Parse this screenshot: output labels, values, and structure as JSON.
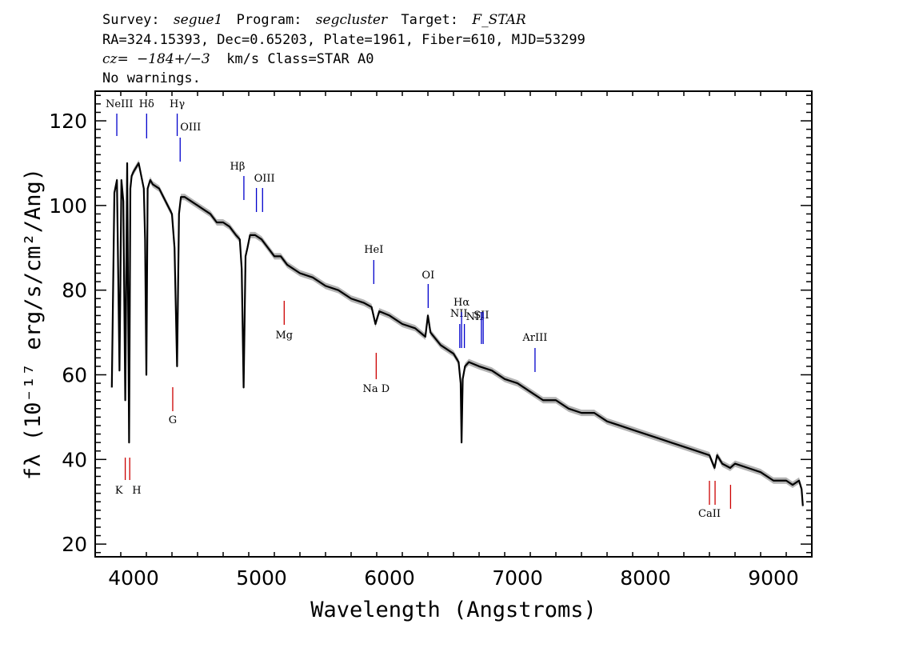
{
  "header": {
    "line1": {
      "survey_key": "Survey:",
      "survey": "segue1",
      "program_key": "Program:",
      "program": "segcluster",
      "target_key": "Target:",
      "target": "F_STAR"
    },
    "line2": "RA=324.15393, Dec=0.65203, Plate=1961, Fiber=610, MJD=53299",
    "line3": {
      "cz_label": "cz=",
      "cz_value": "−184+/−3",
      "cz_rest": " km/s Class=STAR A0"
    },
    "line4": "No warnings."
  },
  "chart_data": {
    "type": "line",
    "xlabel": "Wavelength (Angstroms)",
    "ylabel": "fλ (10⁻¹⁷ erg/s/cm²/Ang)",
    "xlim": [
      3700,
      9300
    ],
    "ylim": [
      17,
      127
    ],
    "x_ticks": [
      4000,
      5000,
      6000,
      7000,
      8000,
      9000
    ],
    "y_ticks": [
      20,
      40,
      60,
      80,
      100,
      120
    ],
    "grid": false,
    "series": [
      {
        "color": "#000000",
        "error_band_color": "#b3b3b3",
        "x": [
          3830,
          3850,
          3870,
          3890,
          3905,
          3920,
          3935,
          3950,
          3965,
          3975,
          3985,
          4000,
          4020,
          4040,
          4060,
          4080,
          4090,
          4100,
          4110,
          4130,
          4150,
          4200,
          4250,
          4300,
          4320,
          4340,
          4355,
          4370,
          4400,
          4450,
          4500,
          4550,
          4600,
          4650,
          4700,
          4750,
          4800,
          4830,
          4845,
          4860,
          4875,
          4890,
          4910,
          4950,
          5000,
          5050,
          5100,
          5150,
          5200,
          5300,
          5400,
          5500,
          5600,
          5700,
          5800,
          5860,
          5890,
          5920,
          6000,
          6100,
          6200,
          6280,
          6300,
          6320,
          6400,
          6500,
          6540,
          6556,
          6563,
          6572,
          6590,
          6620,
          6700,
          6800,
          6900,
          7000,
          7100,
          7200,
          7300,
          7400,
          7500,
          7600,
          7700,
          7800,
          7900,
          8000,
          8100,
          8200,
          8300,
          8400,
          8500,
          8540,
          8560,
          8600,
          8662,
          8700,
          8800,
          8900,
          9000,
          9100,
          9150,
          9200,
          9220,
          9230
        ],
        "y": [
          57,
          103,
          106,
          61,
          106,
          101,
          54,
          110,
          44,
          104,
          107,
          108,
          109,
          110,
          107,
          104,
          92,
          60,
          104,
          106,
          105,
          104,
          101,
          98,
          90,
          62,
          98,
          102,
          102,
          101,
          100,
          99,
          98,
          96,
          96,
          95,
          93,
          92,
          85,
          57,
          88,
          90,
          93,
          93,
          92,
          90,
          88,
          88,
          86,
          84,
          83,
          81,
          80,
          78,
          77,
          76,
          72,
          75,
          74,
          72,
          71,
          69,
          74,
          70,
          67,
          65,
          63,
          58,
          44,
          59,
          62,
          63,
          62,
          61,
          59,
          58,
          56,
          54,
          54,
          52,
          51,
          51,
          49,
          48,
          47,
          46,
          45,
          44,
          43,
          42,
          41,
          38,
          41,
          39,
          38,
          39,
          38,
          37,
          35,
          35,
          34,
          35,
          33,
          29
        ]
      }
    ],
    "lines": [
      {
        "label": "NeIII",
        "wave": 3869,
        "color": "#0000cc"
      },
      {
        "label": "Hδ",
        "wave": 4102,
        "color": "#0000cc"
      },
      {
        "label": "Hγ",
        "wave": 4341,
        "color": "#0000cc"
      },
      {
        "label": "OIII",
        "wave": 4364,
        "color": "#0000cc"
      },
      {
        "label": "Hβ",
        "wave": 4862,
        "color": "#0000cc"
      },
      {
        "label": "OIII",
        "wave": 4960,
        "color": "#0000cc"
      },
      {
        "label": "",
        "wave": 5008,
        "color": "#0000cc"
      },
      {
        "label": "HeI",
        "wave": 5877,
        "color": "#0000cc"
      },
      {
        "label": "OI",
        "wave": 6302,
        "color": "#0000cc"
      },
      {
        "label": "NII",
        "wave": 6549,
        "color": "#0000cc"
      },
      {
        "label": "Hα",
        "wave": 6563,
        "color": "#0000cc"
      },
      {
        "label": "NII",
        "wave": 6585,
        "color": "#0000cc"
      },
      {
        "label": "SII",
        "wave": 6718,
        "color": "#0000cc"
      },
      {
        "label": "",
        "wave": 6732,
        "color": "#0000cc"
      },
      {
        "label": "ArIII",
        "wave": 7137,
        "color": "#0000cc"
      },
      {
        "label": "K",
        "wave": 3935,
        "color": "#cc0000"
      },
      {
        "label": "H",
        "wave": 3970,
        "color": "#cc0000"
      },
      {
        "label": "G",
        "wave": 4306,
        "color": "#cc0000"
      },
      {
        "label": "Mg",
        "wave": 5177,
        "color": "#cc0000"
      },
      {
        "label": "Na D",
        "wave": 5896,
        "color": "#cc0000"
      },
      {
        "label": "CaII",
        "wave": 8500,
        "color": "#cc0000"
      },
      {
        "label": "",
        "wave": 8544,
        "color": "#cc0000"
      },
      {
        "label": "",
        "wave": 8665,
        "color": "#cc0000"
      }
    ]
  }
}
